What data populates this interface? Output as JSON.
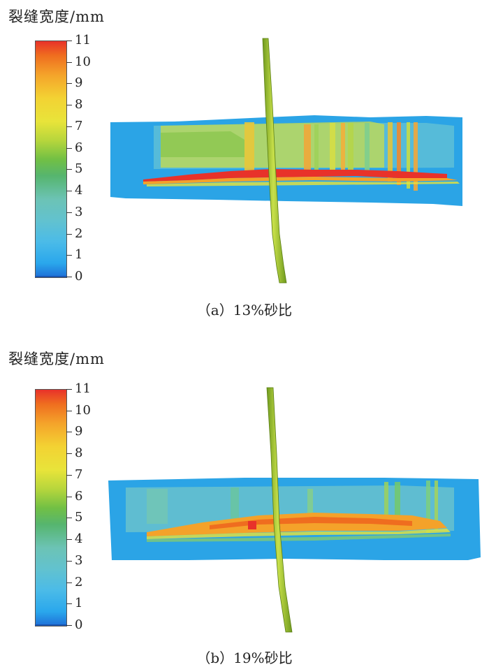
{
  "colorbar": {
    "title": "裂缝宽度/mm",
    "min": 0,
    "max": 11,
    "ticks": [
      "0",
      "1",
      "2",
      "3",
      "4",
      "5",
      "6",
      "7",
      "8",
      "9",
      "10",
      "11"
    ],
    "colors": [
      "#1e6fd8",
      "#2aa7ec",
      "#62c2cf",
      "#56b56e",
      "#e8e43a",
      "#f4a22a",
      "#e8322a"
    ]
  },
  "panels": [
    {
      "caption": "（a）13%砂比"
    },
    {
      "caption": "（b）19%砂比"
    }
  ]
}
